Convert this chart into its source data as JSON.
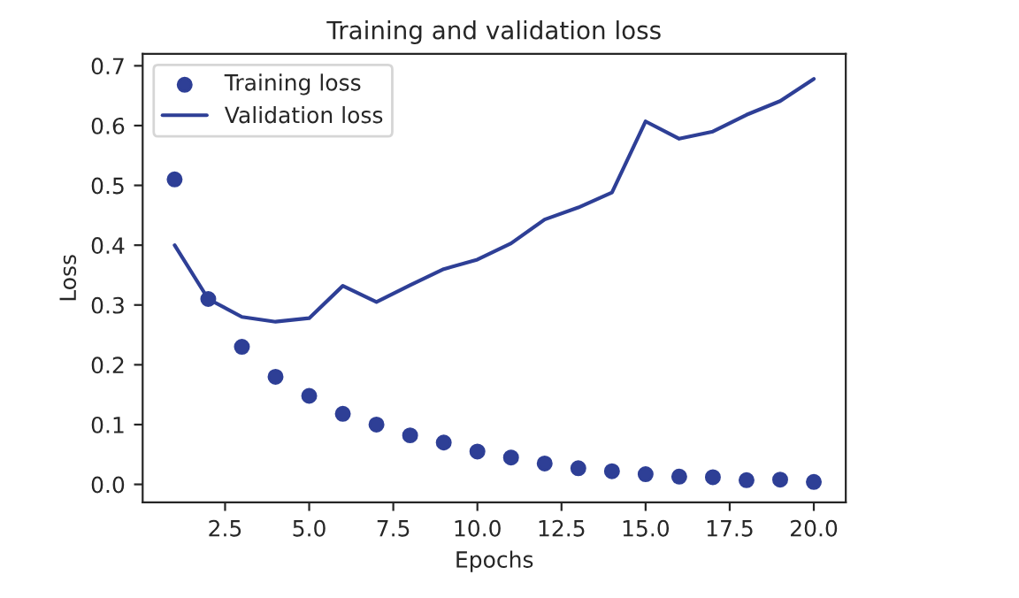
{
  "chart_data": {
    "type": "scatter",
    "title": "Training and validation loss",
    "xlabel": "Epochs",
    "ylabel": "Loss",
    "x": [
      1,
      2,
      3,
      4,
      5,
      6,
      7,
      8,
      9,
      10,
      11,
      12,
      13,
      14,
      15,
      16,
      17,
      18,
      19,
      20
    ],
    "series": [
      {
        "name": "Training loss",
        "color": "#2e3f96",
        "marker": "circle",
        "values": [
          0.51,
          0.31,
          0.23,
          0.18,
          0.148,
          0.118,
          0.1,
          0.082,
          0.07,
          0.055,
          0.045,
          0.035,
          0.027,
          0.022,
          0.017,
          0.013,
          0.012,
          0.007,
          0.008,
          0.004
        ]
      },
      {
        "name": "Validation loss",
        "type": "line",
        "color": "#2e3f96",
        "line_style": "solid",
        "values": [
          0.4,
          0.31,
          0.28,
          0.272,
          0.278,
          0.332,
          0.305,
          0.333,
          0.36,
          0.376,
          0.403,
          0.443,
          0.463,
          0.488,
          0.607,
          0.578,
          0.59,
          0.618,
          0.641,
          0.678
        ]
      }
    ],
    "xlim": [
      0.05,
      20.95
    ],
    "ylim": [
      -0.03,
      0.72
    ],
    "xticks": [
      {
        "value": 2.5,
        "label": "2.5"
      },
      {
        "value": 5.0,
        "label": "5.0"
      },
      {
        "value": 7.5,
        "label": "7.5"
      },
      {
        "value": 10.0,
        "label": "10.0"
      },
      {
        "value": 12.5,
        "label": "12.5"
      },
      {
        "value": 15.0,
        "label": "15.0"
      },
      {
        "value": 17.5,
        "label": "17.5"
      },
      {
        "value": 20.0,
        "label": "20.0"
      }
    ],
    "yticks": [
      {
        "value": 0.0,
        "label": "0.0"
      },
      {
        "value": 0.1,
        "label": "0.1"
      },
      {
        "value": 0.2,
        "label": "0.2"
      },
      {
        "value": 0.3,
        "label": "0.3"
      },
      {
        "value": 0.4,
        "label": "0.4"
      },
      {
        "value": 0.5,
        "label": "0.5"
      },
      {
        "value": 0.6,
        "label": "0.6"
      },
      {
        "value": 0.7,
        "label": "0.7"
      }
    ],
    "legend": "top left",
    "grid": false
  }
}
